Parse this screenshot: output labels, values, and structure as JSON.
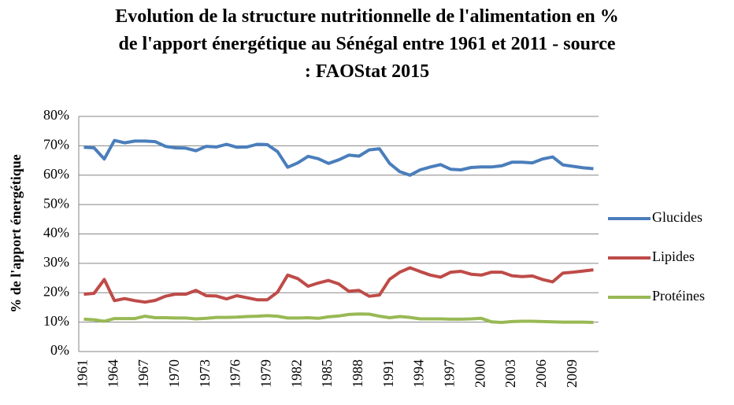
{
  "chart_data": {
    "type": "line",
    "title": "Evolution de la structure nutritionnelle de l'alimentation en % de l'apport énergétique au Sénégal entre 1961 et 2011 - source : FAOStat 2015",
    "y_label": "% de l'apport énergétique",
    "categories": [
      "1961",
      null,
      null,
      "1964",
      null,
      null,
      "1967",
      null,
      null,
      "1970",
      null,
      null,
      "1973",
      null,
      null,
      "1976",
      null,
      null,
      "1979",
      null,
      null,
      "1982",
      null,
      null,
      "1985",
      null,
      null,
      "1988",
      null,
      null,
      "1991",
      null,
      null,
      "1994",
      null,
      null,
      "1997",
      null,
      null,
      "2000",
      null,
      null,
      "2003",
      null,
      null,
      "2006",
      null,
      null,
      "2009",
      null,
      null
    ],
    "series": [
      {
        "name": "Glucides",
        "color": "#4a7ebb",
        "values": [
          69.5,
          69.3,
          65.5,
          71.8,
          71,
          71.6,
          71.6,
          71.4,
          69.8,
          69.3,
          69.2,
          68.3,
          69.8,
          69.6,
          70.5,
          69.5,
          69.6,
          70.5,
          70.4,
          68,
          62.7,
          64.2,
          66.4,
          65.6,
          64,
          65.2,
          66.8,
          66.5,
          68.6,
          69,
          64,
          61.2,
          60,
          61.8,
          62.8,
          63.6,
          62,
          61.8,
          62.6,
          62.8,
          62.8,
          63.2,
          64.4,
          64.4,
          64.2,
          65.5,
          66.2,
          63.5,
          63,
          62.5,
          62.2
        ]
      },
      {
        "name": "Lipides",
        "color": "#be4b48",
        "values": [
          19.5,
          19.8,
          24.5,
          17.3,
          18,
          17.3,
          16.8,
          17.4,
          18.8,
          19.5,
          19.5,
          20.8,
          19,
          18.9,
          17.9,
          19,
          18.3,
          17.6,
          17.6,
          20.2,
          26,
          24.8,
          22.2,
          23.3,
          24.2,
          23,
          20.5,
          20.8,
          18.8,
          19.2,
          24.6,
          27,
          28.5,
          27.2,
          26,
          25.3,
          27,
          27.3,
          26.3,
          26,
          27,
          27,
          25.8,
          25.5,
          25.7,
          24.5,
          23.7,
          26.7,
          27,
          27.4,
          27.8
        ]
      },
      {
        "name": "Protéines",
        "color": "#98b954",
        "values": [
          11,
          10.8,
          10.3,
          11.2,
          11.2,
          11.2,
          12,
          11.5,
          11.5,
          11.4,
          11.4,
          11.1,
          11.3,
          11.6,
          11.6,
          11.7,
          11.9,
          12,
          12.2,
          12,
          11.4,
          11.4,
          11.5,
          11.3,
          11.8,
          12.1,
          12.6,
          12.8,
          12.7,
          12,
          11.5,
          11.9,
          11.6,
          11.1,
          11.1,
          11.1,
          11,
          11,
          11.1,
          11.3,
          10.1,
          9.9,
          10.2,
          10.3,
          10.3,
          10.2,
          10.1,
          10,
          10,
          10,
          9.9
        ]
      }
    ],
    "ylim": [
      0,
      80
    ],
    "yticks": [
      {
        "value": 0,
        "label": "0%"
      },
      {
        "value": 10,
        "label": "10%"
      },
      {
        "value": 20,
        "label": "20%"
      },
      {
        "value": 30,
        "label": "30%"
      },
      {
        "value": 40,
        "label": "40%"
      },
      {
        "value": 50,
        "label": "50%"
      },
      {
        "value": 60,
        "label": "60%"
      },
      {
        "value": 70,
        "label": "70%"
      },
      {
        "value": 80,
        "label": "80%"
      }
    ],
    "grid": true,
    "legend": "right"
  }
}
